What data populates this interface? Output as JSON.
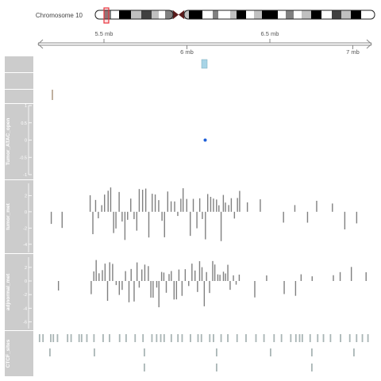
{
  "chart_data": {
    "type": "genome-tracks",
    "ideogram": {
      "chromosome_label": "Chromosome 10",
      "band_colors": [
        "#ffffff",
        "#000000",
        "#404040",
        "#808080",
        "#c0c0c0"
      ],
      "highlight_color": "#e8323c"
    },
    "axis": {
      "tick_labels_top": [
        "5.5 mb",
        "6.5 mb"
      ],
      "tick_labels_bottom": [
        "6 mb",
        "7 mb"
      ],
      "ticks_mb": [
        5.5,
        6.0,
        6.5,
        7.0
      ]
    },
    "tracks": [
      {
        "name": "",
        "type": "blank"
      },
      {
        "name": "",
        "type": "blank"
      },
      {
        "name": "",
        "type": "features",
        "color": "#c0b0a0"
      },
      {
        "name": "Tumor_ATAC_open",
        "type": "dot",
        "yticks": [
          "-1",
          "-0.5",
          "0",
          "0.5",
          "1"
        ],
        "point": {
          "x_mb": 6.11,
          "y": 0
        },
        "color": "#1e5fd8"
      },
      {
        "name": "tumor_met",
        "type": "histogram",
        "yticks": [
          "-4",
          "-2",
          "0",
          "2"
        ],
        "ylim": [
          -5,
          3.5
        ],
        "color": "#808080"
      },
      {
        "name": "adjnormal_met",
        "type": "histogram",
        "yticks": [
          "-6",
          "-4",
          "-2",
          "0",
          "2"
        ],
        "ylim": [
          -7,
          3.5
        ],
        "color": "#808080"
      },
      {
        "name": "CTCF_sites",
        "type": "features",
        "color": "#a9b5b5"
      }
    ],
    "accent_colors": {
      "panel": "#cccccc",
      "feature_blue": "#a8d4e6",
      "bar": "#808080"
    }
  }
}
